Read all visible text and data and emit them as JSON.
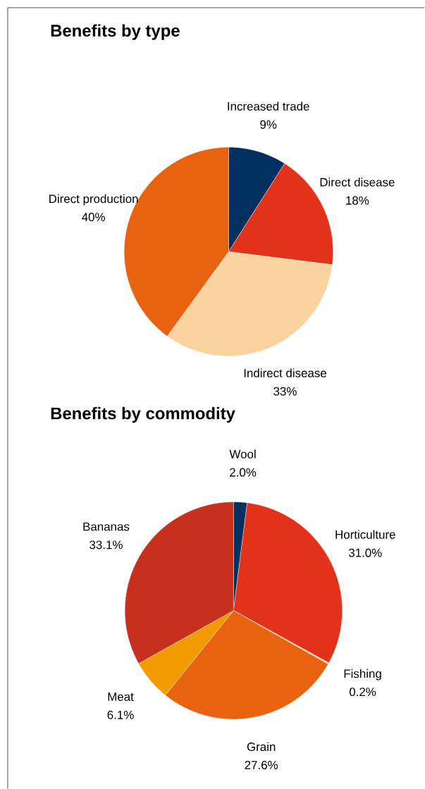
{
  "chart_data": [
    {
      "type": "pie",
      "title": "Benefits by type",
      "categories": [
        "Increased trade",
        "Direct disease",
        "Indirect disease",
        "Direct production"
      ],
      "values": [
        9,
        18,
        33,
        40
      ],
      "colors": [
        "#003060",
        "#e3321a",
        "#fbd3a0",
        "#e8620f"
      ],
      "value_labels": [
        "9%",
        "18%",
        "33%",
        "40%"
      ]
    },
    {
      "type": "pie",
      "title": "Benefits by commodity",
      "categories": [
        "Wool",
        "Horticulture",
        "Fishing",
        "Grain",
        "Meat",
        "Bananas"
      ],
      "values": [
        2.0,
        31.0,
        0.2,
        27.6,
        6.1,
        33.1
      ],
      "colors": [
        "#003060",
        "#e3321a",
        "#fbd3a0",
        "#e8620f",
        "#f39a00",
        "#c8301e"
      ],
      "value_labels": [
        "2.0%",
        "31.0%",
        "0.2%",
        "27.6%",
        "6.1%",
        "33.1%"
      ]
    }
  ]
}
